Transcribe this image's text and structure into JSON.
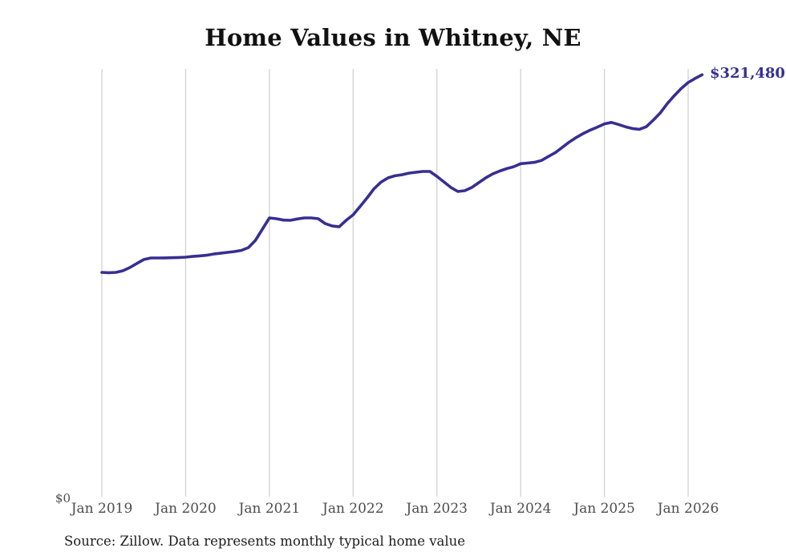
{
  "page": {
    "source_note": "Source: Zillow. Data represents monthly typical home value"
  },
  "chart_data": {
    "type": "line",
    "title": "Home Values in Whitney, NE",
    "series_name": "Typical home value",
    "unit": "USD",
    "x_frequency": "monthly",
    "x_start": "Jan 2019",
    "x_tick_labels": [
      "Jan 2019",
      "Jan 2020",
      "Jan 2021",
      "Jan 2022",
      "Jan 2023",
      "Jan 2024",
      "Jan 2025",
      "Jan 2026"
    ],
    "y_axis": {
      "zero_label": "$0",
      "min": 0,
      "max_plotted_value": 321480,
      "horizontal_gridlines": false,
      "vertical_gridlines": true
    },
    "end_label": "$321,480",
    "final_value": 321480,
    "legend": "none",
    "values": [
      171500,
      171200,
      171500,
      172700,
      175100,
      178200,
      181200,
      182400,
      182400,
      182500,
      182600,
      182800,
      183000,
      183600,
      184000,
      184500,
      185400,
      186000,
      186700,
      187300,
      188200,
      190300,
      195800,
      204300,
      212800,
      212200,
      211200,
      211000,
      212000,
      212800,
      212800,
      212200,
      208500,
      206700,
      206100,
      211000,
      215200,
      221500,
      228000,
      235000,
      240000,
      243200,
      244800,
      245600,
      246800,
      247500,
      248100,
      248100,
      244400,
      240200,
      236000,
      232900,
      233500,
      235900,
      239600,
      243200,
      246200,
      248400,
      250200,
      251700,
      254000,
      254500,
      255000,
      256500,
      259500,
      262500,
      266500,
      270500,
      274000,
      277000,
      279500,
      281800,
      284200,
      285300,
      283800,
      282000,
      280700,
      280100,
      282000,
      287000,
      292500,
      299500,
      305500,
      311000,
      315600,
      318700,
      321480
    ],
    "colors": {
      "line": "#362f92",
      "end_label": "#362f92",
      "gridline": "#d2d2d2",
      "tick_label": "#4d4d4d",
      "title": "#111111",
      "source": "#1c1c1c",
      "background": "#ffffff"
    }
  }
}
